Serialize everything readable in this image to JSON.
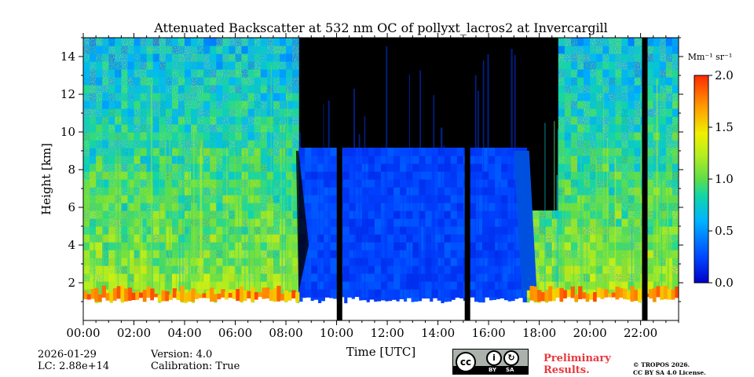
{
  "chart_data": {
    "type": "heatmap",
    "title": "Attenuated Backscatter at 532 nm OC of pollyxt_lacros2 at Invercargill",
    "xlabel": "Time [UTC]",
    "ylabel": "Height [km]",
    "x_range_hours": [
      0,
      23.5
    ],
    "y_range_km": [
      0,
      15
    ],
    "x_ticks": [
      "00:00",
      "02:00",
      "04:00",
      "06:00",
      "08:00",
      "10:00",
      "12:00",
      "14:00",
      "16:00",
      "18:00",
      "20:00",
      "22:00"
    ],
    "y_ticks": [
      "2",
      "4",
      "6",
      "8",
      "10",
      "12",
      "14"
    ],
    "colorbar": {
      "unit_label": "Mm⁻¹ sr⁻¹",
      "range": [
        0.0,
        2.0
      ],
      "ticks": [
        "0.0",
        "0.5",
        "1.0",
        "1.5",
        "2.0"
      ],
      "colormap": "jet"
    },
    "data_gaps_hours": [
      10.1,
      15.15,
      22.15
    ],
    "cloud_layer": {
      "start_hour": 8.5,
      "end_hour": 17.6,
      "top_km": 9.0
    },
    "surface_aerosol_top_km": 1.6
  },
  "footer": {
    "date": "2026-01-29",
    "lc": "LC: 2.88e+14",
    "version": "Version: 4.0",
    "calibration": "Calibration: True",
    "preliminary_line1": "Preliminary",
    "preliminary_line2": "Results.",
    "copyright_line1": "© TROPOS 2026.",
    "copyright_line2": "CC BY SA 4.0 License.",
    "license_by": "BY",
    "license_sa": "SA",
    "license_cc": "cc"
  }
}
